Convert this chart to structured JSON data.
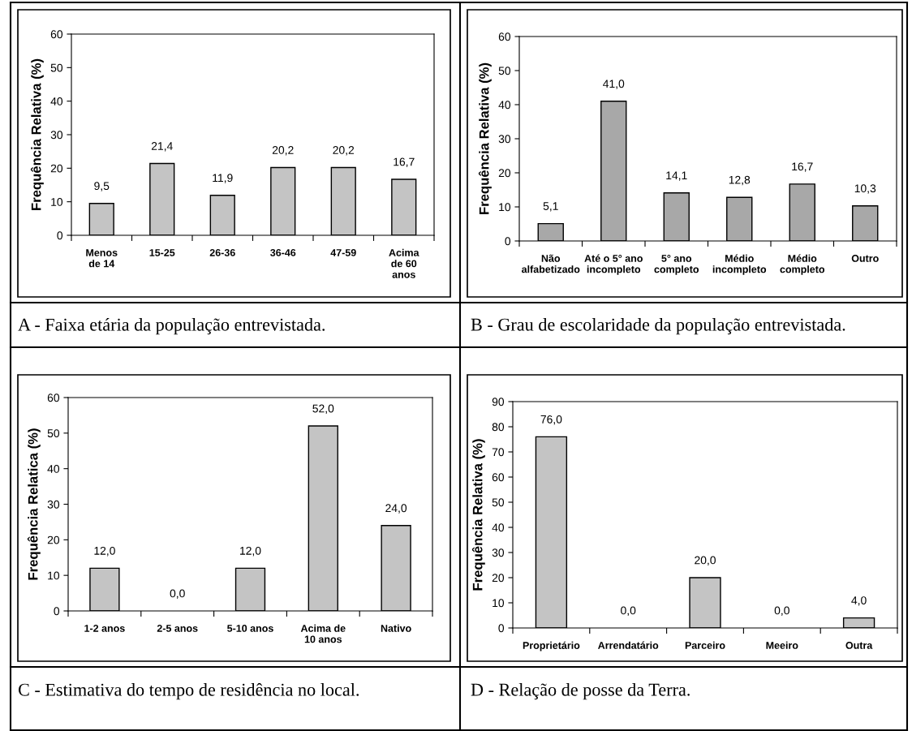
{
  "chart_data": [
    {
      "type": "bar",
      "ylabel": "Frequência Relativa (%)",
      "categories": [
        "Menos\nde 14",
        "15-25",
        "26-36",
        "36-46",
        "47-59",
        "Acima\nde 60\nanos"
      ],
      "values": [
        9.5,
        21.4,
        11.9,
        20.2,
        20.2,
        16.7
      ],
      "value_labels": [
        "9,5",
        "21,4",
        "11,9",
        "20,2",
        "20,2",
        "16,7"
      ],
      "color": "#c4c4c4",
      "ylim": [
        0,
        60
      ],
      "yticks": [
        0,
        10,
        20,
        30,
        40,
        50,
        60
      ],
      "grid": false,
      "annotations": [
        "A - Faixa etária da população entrevistada."
      ]
    },
    {
      "type": "bar",
      "ylabel": "Frequência Relativa (%)",
      "categories": [
        "Não\nalfabetizado",
        "Até o 5° ano\nincompleto",
        "5° ano\ncompleto",
        "Médio\nincompleto",
        "Médio\ncompleto",
        "Outro"
      ],
      "values": [
        5.1,
        41.0,
        14.1,
        12.8,
        16.7,
        10.3
      ],
      "value_labels": [
        "5,1",
        "41,0",
        "14,1",
        "12,8",
        "16,7",
        "10,3"
      ],
      "color": "#a8a8a8",
      "ylim": [
        0,
        60
      ],
      "yticks": [
        0,
        10,
        20,
        30,
        40,
        50,
        60
      ],
      "grid": false,
      "annotations": [
        "B - Grau de escolaridade da população entrevistada."
      ]
    },
    {
      "type": "bar",
      "ylabel": "Frequência Relatica (%)",
      "categories": [
        "1-2 anos",
        "2-5 anos",
        "5-10 anos",
        "Acima de\n10 anos",
        "Nativo"
      ],
      "values": [
        12.0,
        0.0,
        12.0,
        52.0,
        24.0
      ],
      "value_labels": [
        "12,0",
        "0,0",
        "12,0",
        "52,0",
        "24,0"
      ],
      "color": "#c4c4c4",
      "ylim": [
        0,
        60
      ],
      "yticks": [
        0,
        10,
        20,
        30,
        40,
        50,
        60
      ],
      "grid": false,
      "annotations": [
        "C - Estimativa do tempo de residência no local."
      ]
    },
    {
      "type": "bar",
      "ylabel": "Frequência Relativa (%)",
      "categories": [
        "Proprietário",
        "Arrendatário",
        "Parceiro",
        "Meeiro",
        "Outra"
      ],
      "values": [
        76.0,
        0.0,
        20.0,
        0.0,
        4.0
      ],
      "value_labels": [
        "76,0",
        "0,0",
        "20,0",
        "0,0",
        "4,0"
      ],
      "color": "#c4c4c4",
      "ylim": [
        0,
        90
      ],
      "yticks": [
        0,
        10,
        20,
        30,
        40,
        50,
        60,
        70,
        80,
        90
      ],
      "grid": false,
      "annotations": [
        "D - Relação de posse da Terra."
      ]
    }
  ]
}
